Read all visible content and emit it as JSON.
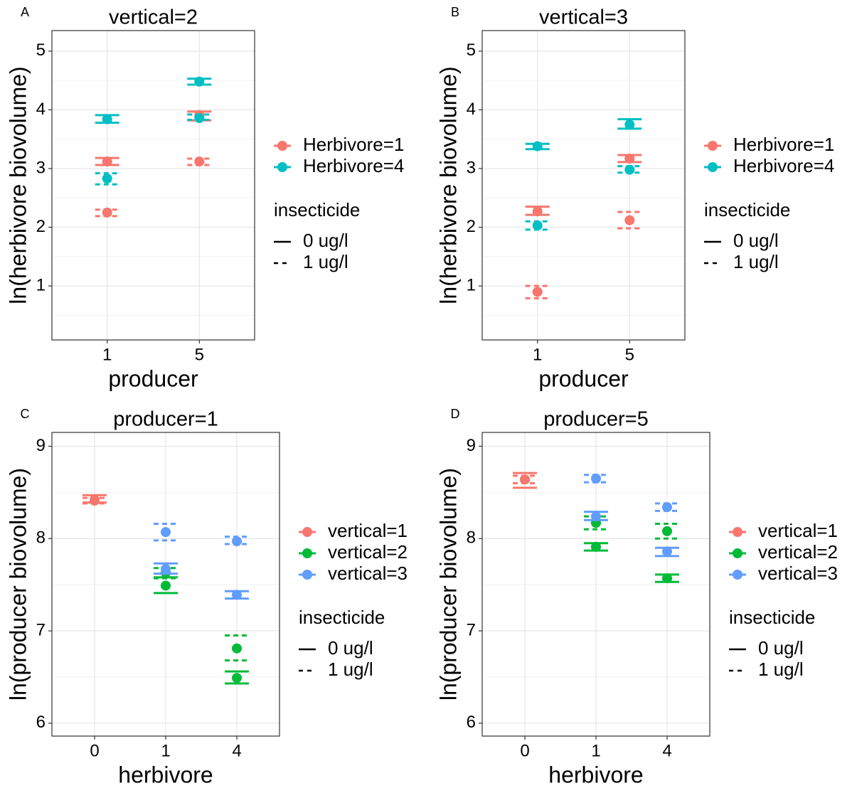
{
  "chart_data": [
    {
      "type": "errorbar",
      "label": "A",
      "title": "vertical=2",
      "xlabel": "producer",
      "ylabel": "ln(herbivore biovolume)",
      "categories": [
        "1",
        "5"
      ],
      "ylim": [
        0.08,
        5.35
      ],
      "yticks": [
        1,
        2,
        3,
        4,
        5
      ],
      "grid": true,
      "color_legend": [
        {
          "name": "Herbivore=1",
          "color": "#F8766D"
        },
        {
          "name": "Herbivore=4",
          "color": "#00BFC4"
        }
      ],
      "linetype_legend": {
        "title": "insecticide",
        "items": [
          {
            "name": "0 ug/l",
            "dash": "solid"
          },
          {
            "name": "1 ug/l",
            "dash": "dashed"
          }
        ]
      },
      "series": [
        {
          "color": "#F8766D",
          "dash": "solid",
          "values": [
            3.12,
            3.91
          ],
          "upper": [
            3.18,
            3.97
          ],
          "lower": [
            3.06,
            3.82
          ]
        },
        {
          "color": "#F8766D",
          "dash": "dashed",
          "values": [
            2.25,
            3.12
          ],
          "upper": [
            2.3,
            3.17
          ],
          "lower": [
            2.19,
            3.06
          ]
        },
        {
          "color": "#00BFC4",
          "dash": "solid",
          "values": [
            3.84,
            4.48
          ],
          "upper": [
            3.91,
            4.53
          ],
          "lower": [
            3.78,
            4.43
          ]
        },
        {
          "color": "#00BFC4",
          "dash": "dashed",
          "values": [
            2.83,
            3.86
          ],
          "upper": [
            2.92,
            3.92
          ],
          "lower": [
            2.73,
            3.83
          ]
        }
      ]
    },
    {
      "type": "errorbar",
      "label": "B",
      "title": "vertical=3",
      "xlabel": "producer",
      "ylabel": "ln(herbivore biovolume)",
      "categories": [
        "1",
        "5"
      ],
      "ylim": [
        0.08,
        5.35
      ],
      "yticks": [
        1,
        2,
        3,
        4,
        5
      ],
      "grid": true,
      "color_legend": [
        {
          "name": "Herbivore=1",
          "color": "#F8766D"
        },
        {
          "name": "Herbivore=4",
          "color": "#00BFC4"
        }
      ],
      "linetype_legend": {
        "title": "insecticide",
        "items": [
          {
            "name": "0 ug/l",
            "dash": "solid"
          },
          {
            "name": "1 ug/l",
            "dash": "dashed"
          }
        ]
      },
      "series": [
        {
          "color": "#F8766D",
          "dash": "solid",
          "values": [
            2.27,
            3.17
          ],
          "upper": [
            2.35,
            3.23
          ],
          "lower": [
            2.21,
            3.11
          ]
        },
        {
          "color": "#F8766D",
          "dash": "dashed",
          "values": [
            0.9,
            2.12
          ],
          "upper": [
            1.0,
            2.26
          ],
          "lower": [
            0.79,
            1.98
          ]
        },
        {
          "color": "#00BFC4",
          "dash": "solid",
          "values": [
            3.38,
            3.75
          ],
          "upper": [
            3.42,
            3.84
          ],
          "lower": [
            3.33,
            3.68
          ]
        },
        {
          "color": "#00BFC4",
          "dash": "dashed",
          "values": [
            2.03,
            2.98
          ],
          "upper": [
            2.1,
            3.04
          ],
          "lower": [
            1.96,
            2.93
          ]
        }
      ]
    },
    {
      "type": "errorbar",
      "label": "C",
      "title": "producer=1",
      "xlabel": "herbivore",
      "ylabel": "ln(producer biovolume)",
      "categories": [
        "0",
        "1",
        "4"
      ],
      "ylim": [
        5.86,
        9.15
      ],
      "yticks": [
        6,
        7,
        8,
        9
      ],
      "grid": true,
      "color_legend": [
        {
          "name": "vertical=1",
          "color": "#F8766D"
        },
        {
          "name": "vertical=2",
          "color": "#00BA38"
        },
        {
          "name": "vertical=3",
          "color": "#619CFF"
        }
      ],
      "linetype_legend": {
        "title": "insecticide",
        "items": [
          {
            "name": "0 ug/l",
            "dash": "solid"
          },
          {
            "name": "1 ug/l",
            "dash": "dashed"
          }
        ]
      },
      "series": [
        {
          "color": "#F8766D",
          "dash": "solid",
          "values": [
            8.42,
            null,
            null
          ],
          "upper": [
            8.47,
            null,
            null
          ],
          "lower": [
            8.39,
            null,
            null
          ]
        },
        {
          "color": "#F8766D",
          "dash": "dashed",
          "values": [
            8.41,
            null,
            null
          ],
          "upper": [
            8.44,
            null,
            null
          ],
          "lower": [
            8.38,
            null,
            null
          ]
        },
        {
          "color": "#00BA38",
          "dash": "solid",
          "values": [
            null,
            7.49,
            6.49
          ],
          "upper": [
            null,
            7.58,
            6.56
          ],
          "lower": [
            null,
            7.41,
            6.43
          ]
        },
        {
          "color": "#00BA38",
          "dash": "dashed",
          "values": [
            null,
            7.63,
            6.81
          ],
          "upper": [
            null,
            7.68,
            6.95
          ],
          "lower": [
            null,
            7.57,
            6.68
          ]
        },
        {
          "color": "#619CFF",
          "dash": "solid",
          "values": [
            null,
            7.67,
            7.39
          ],
          "upper": [
            null,
            7.73,
            7.43
          ],
          "lower": [
            null,
            7.62,
            7.35
          ]
        },
        {
          "color": "#619CFF",
          "dash": "dashed",
          "values": [
            null,
            8.07,
            7.97
          ],
          "upper": [
            null,
            8.16,
            8.02
          ],
          "lower": [
            null,
            7.98,
            7.94
          ]
        }
      ]
    },
    {
      "type": "errorbar",
      "label": "D",
      "title": "producer=5",
      "xlabel": "herbivore",
      "ylabel": "ln(producer biovolume)",
      "categories": [
        "0",
        "1",
        "4"
      ],
      "ylim": [
        5.86,
        9.15
      ],
      "yticks": [
        6,
        7,
        8,
        9
      ],
      "grid": true,
      "color_legend": [
        {
          "name": "vertical=1",
          "color": "#F8766D"
        },
        {
          "name": "vertical=2",
          "color": "#00BA38"
        },
        {
          "name": "vertical=3",
          "color": "#619CFF"
        }
      ],
      "linetype_legend": {
        "title": "insecticide",
        "items": [
          {
            "name": "0 ug/l",
            "dash": "solid"
          },
          {
            "name": "1 ug/l",
            "dash": "dashed"
          }
        ]
      },
      "series": [
        {
          "color": "#F8766D",
          "dash": "solid",
          "values": [
            8.64,
            null,
            null
          ],
          "upper": [
            8.71,
            null,
            null
          ],
          "lower": [
            8.55,
            null,
            null
          ]
        },
        {
          "color": "#F8766D",
          "dash": "dashed",
          "values": [
            8.64,
            null,
            null
          ],
          "upper": [
            8.68,
            null,
            null
          ],
          "lower": [
            8.6,
            null,
            null
          ]
        },
        {
          "color": "#00BA38",
          "dash": "solid",
          "values": [
            null,
            7.91,
            7.57
          ],
          "upper": [
            null,
            7.95,
            7.61
          ],
          "lower": [
            null,
            7.87,
            7.53
          ]
        },
        {
          "color": "#00BA38",
          "dash": "dashed",
          "values": [
            null,
            8.17,
            8.08
          ],
          "upper": [
            null,
            8.24,
            8.16
          ],
          "lower": [
            null,
            8.1,
            8.0
          ]
        },
        {
          "color": "#619CFF",
          "dash": "solid",
          "values": [
            null,
            8.24,
            7.86
          ],
          "upper": [
            null,
            8.29,
            7.9
          ],
          "lower": [
            null,
            8.2,
            7.81
          ]
        },
        {
          "color": "#619CFF",
          "dash": "dashed",
          "values": [
            null,
            8.65,
            8.34
          ],
          "upper": [
            null,
            8.69,
            8.38
          ],
          "lower": [
            null,
            8.61,
            8.3
          ]
        }
      ]
    }
  ]
}
